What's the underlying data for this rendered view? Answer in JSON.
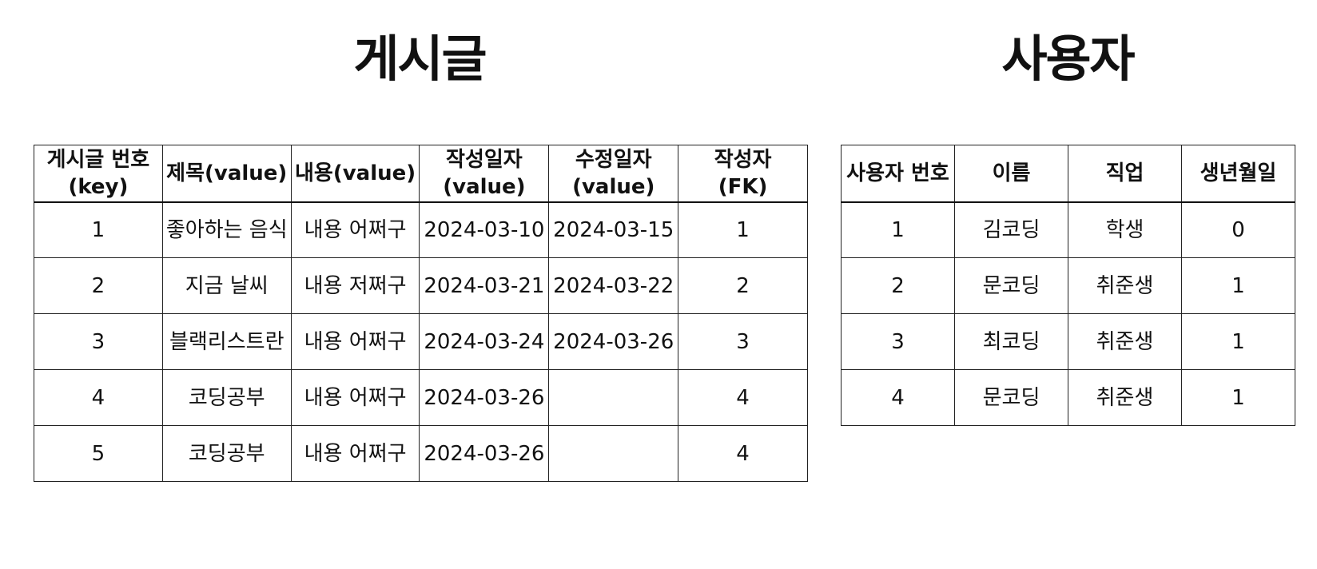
{
  "posts": {
    "title": "게시글",
    "headers": [
      {
        "line1": "게시글 번호",
        "line2": "(key)"
      },
      {
        "line1": "제목(value)",
        "line2": ""
      },
      {
        "line1": "내용(value)",
        "line2": ""
      },
      {
        "line1": "작성일자",
        "line2": "(value)"
      },
      {
        "line1": "수정일자",
        "line2": "(value)"
      },
      {
        "line1": "작성자",
        "line2": "(FK)"
      }
    ],
    "rows": [
      [
        "1",
        "좋아하는 음식",
        "내용 어쩌구",
        "2024-03-10",
        "2024-03-15",
        "1"
      ],
      [
        "2",
        "지금 날씨",
        "내용 저쩌구",
        "2024-03-21",
        "2024-03-22",
        "2"
      ],
      [
        "3",
        "블랙리스트란",
        "내용 어쩌구",
        "2024-03-24",
        "2024-03-26",
        "3"
      ],
      [
        "4",
        "코딩공부",
        "내용 어쩌구",
        "2024-03-26",
        "",
        "4"
      ],
      [
        "5",
        "코딩공부",
        "내용 어쩌구",
        "2024-03-26",
        "",
        "4"
      ]
    ]
  },
  "users": {
    "title": "사용자",
    "headers": [
      "사용자 번호",
      "이름",
      "직업",
      "생년월일"
    ],
    "rows": [
      [
        "1",
        "김코딩",
        "학생",
        "0"
      ],
      [
        "2",
        "문코딩",
        "취준생",
        "1"
      ],
      [
        "3",
        "최코딩",
        "취준생",
        "1"
      ],
      [
        "4",
        "문코딩",
        "취준생",
        "1"
      ]
    ]
  }
}
